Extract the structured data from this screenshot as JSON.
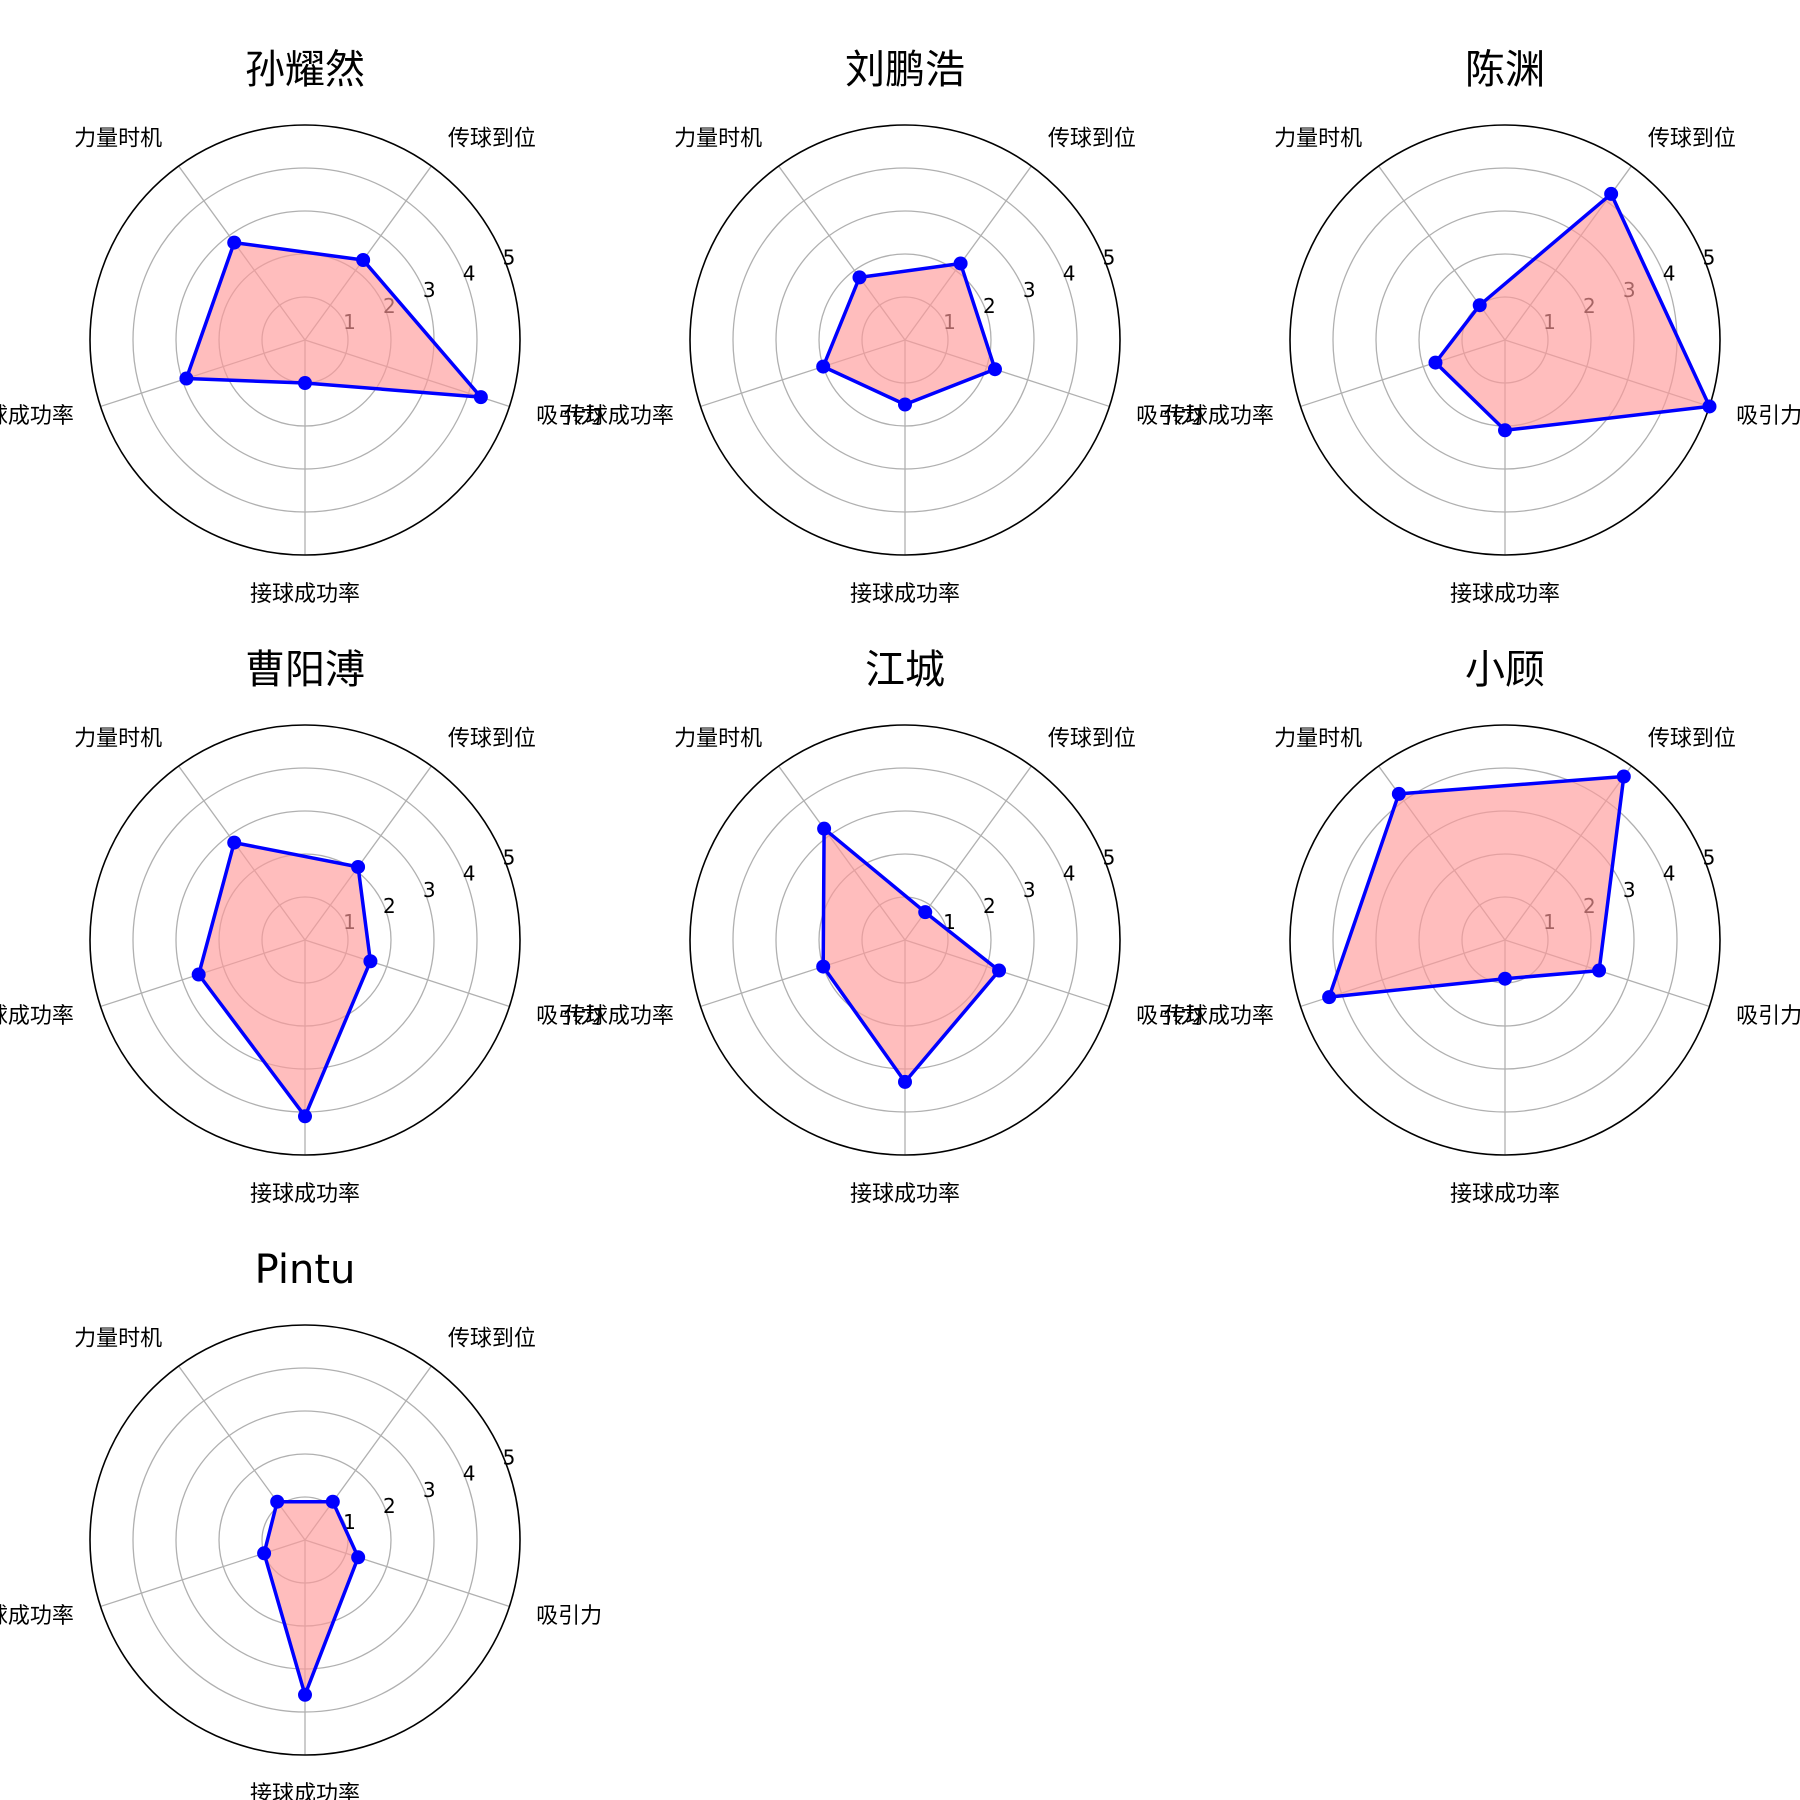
{
  "chart_data": [
    {
      "type": "radar",
      "title": "孙耀然",
      "axes": [
        "吸引力",
        "传球到位",
        "力量时机",
        "传球成功率",
        "接球成功率"
      ],
      "rlim": [
        0,
        5
      ],
      "rticks": [
        1,
        2,
        3,
        4,
        5
      ],
      "grid": true,
      "values": [
        4.3,
        2.3,
        2.8,
        2.9,
        1.0
      ]
    },
    {
      "type": "radar",
      "title": "刘鹏浩",
      "axes": [
        "吸引力",
        "传球到位",
        "力量时机",
        "传球成功率",
        "接球成功率"
      ],
      "rlim": [
        0,
        5
      ],
      "rticks": [
        1,
        2,
        3,
        4,
        5
      ],
      "grid": true,
      "values": [
        2.2,
        2.2,
        1.8,
        2.0,
        1.5
      ]
    },
    {
      "type": "radar",
      "title": "陈渊",
      "axes": [
        "吸引力",
        "传球到位",
        "力量时机",
        "传球成功率",
        "接球成功率"
      ],
      "rlim": [
        0,
        5
      ],
      "rticks": [
        1,
        2,
        3,
        4,
        5
      ],
      "grid": true,
      "values": [
        5.0,
        4.2,
        1.0,
        1.7,
        2.1
      ]
    },
    {
      "type": "radar",
      "title": "曹阳溥",
      "axes": [
        "吸引力",
        "传球到位",
        "力量时机",
        "传球成功率",
        "接球成功率"
      ],
      "rlim": [
        0,
        5
      ],
      "rticks": [
        1,
        2,
        3,
        4,
        5
      ],
      "grid": true,
      "values": [
        1.6,
        2.1,
        2.8,
        2.6,
        4.1
      ]
    },
    {
      "type": "radar",
      "title": "江城",
      "axes": [
        "吸引力",
        "传球到位",
        "力量时机",
        "传球成功率",
        "接球成功率"
      ],
      "rlim": [
        0,
        5
      ],
      "rticks": [
        1,
        2,
        3,
        4,
        5
      ],
      "grid": true,
      "values": [
        2.3,
        0.8,
        3.2,
        2.0,
        3.3
      ]
    },
    {
      "type": "radar",
      "title": "小顾",
      "axes": [
        "吸引力",
        "传球到位",
        "力量时机",
        "传球成功率",
        "接球成功率"
      ],
      "rlim": [
        0,
        5
      ],
      "rticks": [
        1,
        2,
        3,
        4,
        5
      ],
      "grid": true,
      "values": [
        2.3,
        4.7,
        4.2,
        4.3,
        0.9
      ]
    },
    {
      "type": "radar",
      "title": "Pintu",
      "axes": [
        "吸引力",
        "传球到位",
        "力量时机",
        "传球成功率",
        "接球成功率"
      ],
      "rlim": [
        0,
        5
      ],
      "rticks": [
        1,
        2,
        3,
        4,
        5
      ],
      "grid": true,
      "values": [
        1.3,
        1.1,
        1.1,
        1.0,
        3.6
      ]
    }
  ]
}
